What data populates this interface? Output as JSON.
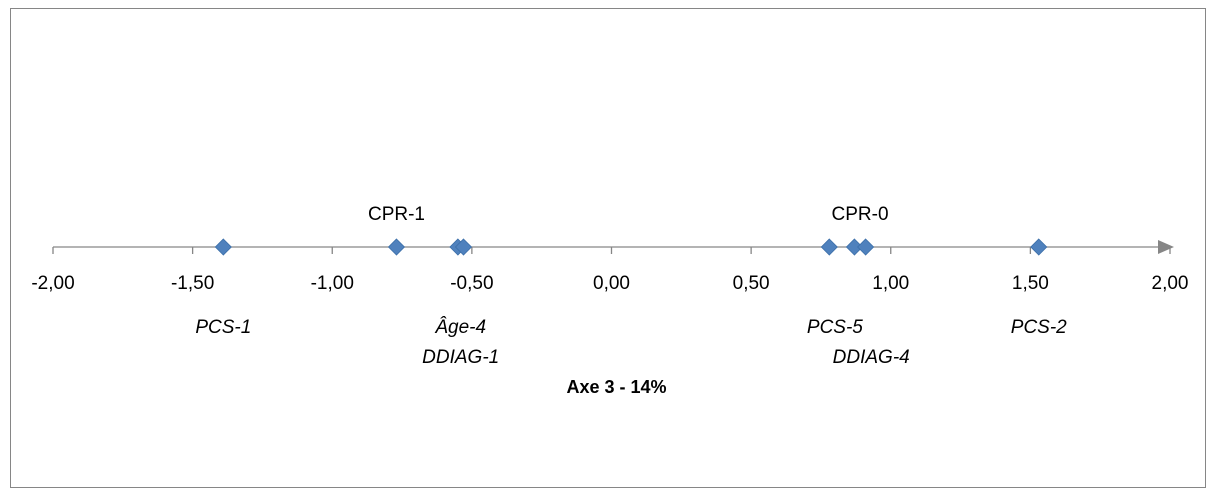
{
  "chart_data": {
    "type": "scatter",
    "title": "",
    "xlabel": "Axe 3 - 14%",
    "ylabel": "",
    "xlim": [
      -2,
      2
    ],
    "x_ticks": [
      "-2,00",
      "-1,50",
      "-1,00",
      "-0,50",
      "0,00",
      "0,50",
      "1,00",
      "1,50",
      "2,00"
    ],
    "x_tick_values": [
      -2,
      -1.5,
      -1,
      -0.5,
      0,
      0.5,
      1,
      1.5,
      2
    ],
    "grid": false,
    "marker_color": "#4F81BD",
    "axis_color": "#868686",
    "points": [
      {
        "x": -1.39,
        "y": 0
      },
      {
        "x": -0.77,
        "y": 0
      },
      {
        "x": -0.55,
        "y": 0
      },
      {
        "x": -0.53,
        "y": 0
      },
      {
        "x": 0.78,
        "y": 0
      },
      {
        "x": 0.87,
        "y": 0
      },
      {
        "x": 0.91,
        "y": 0
      },
      {
        "x": 1.53,
        "y": 0
      }
    ],
    "labels": [
      {
        "text": "CPR-1",
        "x": -0.77,
        "side": "above",
        "italic": false
      },
      {
        "text": "CPR-0",
        "x": 0.89,
        "side": "above",
        "italic": false
      },
      {
        "text": "PCS-1",
        "x": -1.39,
        "row": 1,
        "italic": true
      },
      {
        "text": "Âge-4",
        "x": -0.54,
        "row": 1,
        "italic": true
      },
      {
        "text": "DDIAG-1",
        "x": -0.54,
        "row": 2,
        "italic": true
      },
      {
        "text": "PCS-5",
        "x": 0.8,
        "row": 1,
        "italic": true
      },
      {
        "text": "DDIAG-4",
        "x": 0.93,
        "row": 2,
        "italic": true
      },
      {
        "text": "PCS-2",
        "x": 1.53,
        "row": 1,
        "italic": true
      }
    ]
  }
}
